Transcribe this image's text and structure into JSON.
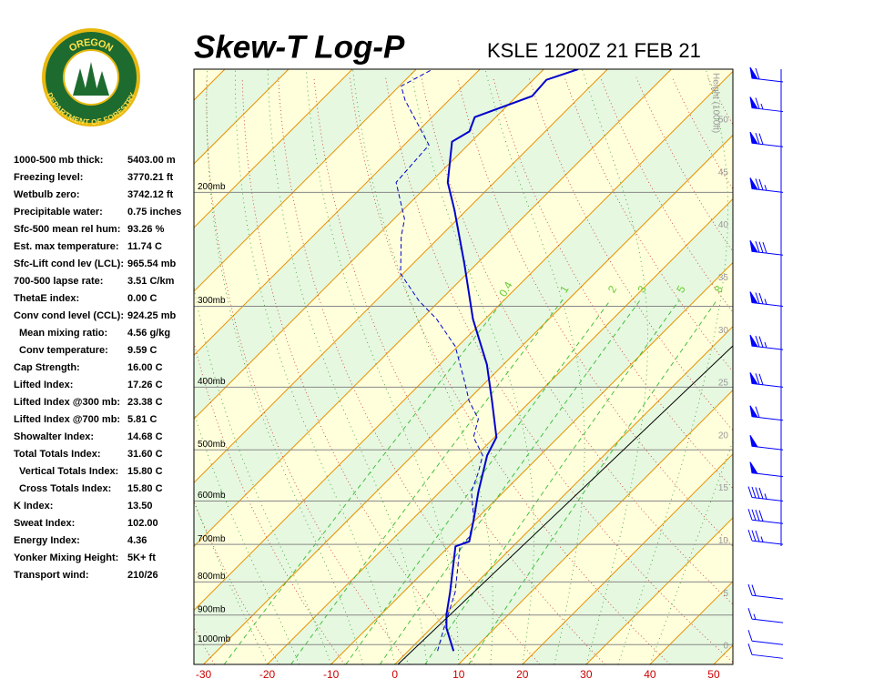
{
  "logo": {
    "top": "OREGON",
    "bottom": "DEPARTMENT OF FORESTRY"
  },
  "indices": [
    {
      "label": "1000-500 mb thick:",
      "value": "5403.00 m"
    },
    {
      "label": "Freezing level:",
      "value": "3770.21 ft"
    },
    {
      "label": "Wetbulb zero:",
      "value": "3742.12 ft"
    },
    {
      "label": "Precipitable water:",
      "value": "0.75 inches"
    },
    {
      "label": "Sfc-500 mean rel hum:",
      "value": "93.26 %"
    },
    {
      "label": "Est. max temperature:",
      "value": "11.74 C"
    },
    {
      "label": "Sfc-Lift cond lev (LCL):",
      "value": "965.54 mb"
    },
    {
      "label": "700-500 lapse rate:",
      "value": "3.51 C/km"
    },
    {
      "label": "ThetaE index:",
      "value": "0.00 C"
    },
    {
      "label": "Conv cond level (CCL):",
      "value": "924.25 mb"
    },
    {
      "label": "Mean mixing ratio:",
      "value": "4.56 g/kg",
      "indent": true
    },
    {
      "label": "Conv temperature:",
      "value": "9.59 C",
      "indent": true
    },
    {
      "label": "Cap Strength:",
      "value": "16.00 C"
    },
    {
      "label": "Lifted Index:",
      "value": "17.26 C"
    },
    {
      "label": "Lifted Index @300 mb:",
      "value": "23.38 C"
    },
    {
      "label": "Lifted Index @700 mb:",
      "value": "5.81 C"
    },
    {
      "label": "Showalter Index:",
      "value": "14.68 C"
    },
    {
      "label": "Total Totals Index:",
      "value": "31.60 C"
    },
    {
      "label": "Vertical Totals Index:",
      "value": "15.80 C",
      "indent": true
    },
    {
      "label": "Cross Totals Index:",
      "value": "15.80 C",
      "indent": true
    },
    {
      "label": "K Index:",
      "value": "13.50"
    },
    {
      "label": "Sweat Index:",
      "value": "102.00"
    },
    {
      "label": "Energy Index:",
      "value": "4.36"
    },
    {
      "label": "Yonker Mixing Height:",
      "value": "5K+ ft"
    },
    {
      "label": "Transport wind:",
      "value": "210/26"
    }
  ],
  "chart_data": {
    "type": "skewt",
    "title": "Skew-T Log-P",
    "subtitle": "KSLE 1200Z 21 FEB 21",
    "xlim": [
      -31.5,
      53
    ],
    "xticks": [
      -30,
      -20,
      -10,
      0,
      10,
      20,
      30,
      40,
      50
    ],
    "ylim": [
      1073,
      129
    ],
    "yticks": [
      {
        "value": 200,
        "label": "200mb"
      },
      {
        "value": 300,
        "label": "300mb"
      },
      {
        "value": 400,
        "label": "400mb"
      },
      {
        "value": 500,
        "label": "500mb"
      },
      {
        "value": 600,
        "label": "600mb"
      },
      {
        "value": 700,
        "label": "700mb"
      },
      {
        "value": 800,
        "label": "800mb"
      },
      {
        "value": 900,
        "label": "900mb"
      },
      {
        "value": 1000,
        "label": "1000mb"
      }
    ],
    "height_label": "Height (1000ft)",
    "height_lim": [
      0,
      50
    ],
    "height_ticks": [
      0,
      5,
      10,
      15,
      20,
      25,
      30,
      35,
      40,
      45,
      50
    ],
    "mixing_ratio_labels": [
      0.4,
      1,
      2,
      3,
      5,
      8
    ],
    "series": [
      {
        "color": "#0000cc",
        "dashed": false,
        "pressure": [
          1023,
          943,
          899,
          829,
          705,
          693,
          640,
          580,
          510,
          478,
          420,
          369,
          314,
          258,
          213,
          193,
          167,
          161,
          153,
          142,
          134,
          129
        ],
        "values": [
          7.1,
          2.4,
          0.3,
          -2.7,
          -9.0,
          -7.6,
          -10.4,
          -14.0,
          -18.3,
          -19.7,
          -26.1,
          -32.6,
          -41.9,
          -51.9,
          -61.9,
          -67.3,
          -73.0,
          -71.9,
          -73.3,
          -67.6,
          -67.9,
          -64.6
        ]
      },
      {
        "color": "#0000cc",
        "dashed": true,
        "pressure": [
          1023,
          943,
          829,
          705,
          682,
          640,
          580,
          544,
          510,
          478,
          448,
          420,
          393,
          346,
          314,
          294,
          267,
          234,
          220,
          193,
          169,
          144,
          137,
          129
        ],
        "values": [
          4.6,
          2.0,
          -1.9,
          -8.3,
          -8.3,
          -10.4,
          -15.1,
          -16.9,
          -19.0,
          -23.3,
          -25.4,
          -29.7,
          -33.3,
          -40.4,
          -47.6,
          -53.3,
          -60.4,
          -66.1,
          -68.3,
          -75.4,
          -76.1,
          -86.9,
          -89.7,
          -87.4
        ]
      }
    ],
    "winds": {
      "color": "#0000ff",
      "pressure": [
        1050,
        1000,
        925,
        850,
        700,
        650,
        600,
        550,
        500,
        450,
        400,
        350,
        300,
        250,
        200,
        170,
        150,
        135
      ],
      "speed": [
        10,
        10,
        15,
        20,
        35,
        40,
        45,
        50,
        50,
        60,
        70,
        75,
        75,
        80,
        75,
        70,
        65,
        60
      ]
    }
  }
}
